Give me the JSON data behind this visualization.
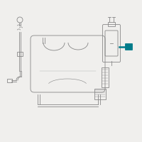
{
  "bg_color": "#f0efed",
  "line_color": "#888888",
  "teal_color": "#007b8a",
  "figsize": [
    2.0,
    2.0
  ],
  "dpi": 100
}
